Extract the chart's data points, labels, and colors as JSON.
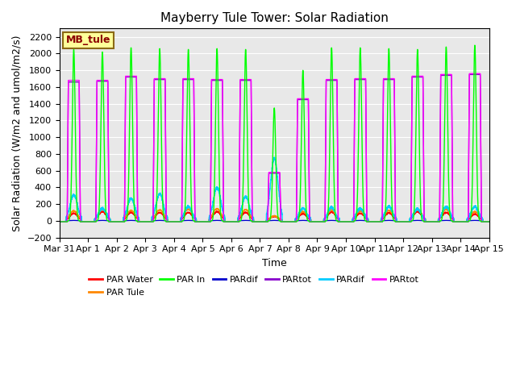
{
  "title": "Mayberry Tule Tower: Solar Radiation",
  "ylabel": "Solar Radiation (W/m2 and umol/m2/s)",
  "xlabel": "Time",
  "ylim": [
    -200,
    2300
  ],
  "yticks": [
    -200,
    0,
    200,
    400,
    600,
    800,
    1000,
    1200,
    1400,
    1600,
    1800,
    2000,
    2200
  ],
  "bg_color": "#e8e8e8",
  "legend_label": "MB_tule",
  "legend_box_color": "#ffff99",
  "legend_box_edge": "#8B6914",
  "series": [
    {
      "label": "PAR Water",
      "color": "#ff0000",
      "lw": 1.2
    },
    {
      "label": "PAR Tule",
      "color": "#ff8800",
      "lw": 1.2
    },
    {
      "label": "PAR In",
      "color": "#00ff00",
      "lw": 1.2
    },
    {
      "label": "PARdif",
      "color": "#0000cc",
      "lw": 1.2
    },
    {
      "label": "PARtot",
      "color": "#8800cc",
      "lw": 1.2
    },
    {
      "label": "PARdif",
      "color": "#00ccff",
      "lw": 1.2
    },
    {
      "label": "PARtot",
      "color": "#ff00ff",
      "lw": 1.5
    }
  ],
  "n_days": 15,
  "x_tick_labels": [
    "Mar 31",
    "Apr 1",
    "Apr 2",
    "Apr 3",
    "Apr 4",
    "Apr 5",
    "Apr 6",
    "Apr 7",
    "Apr 8",
    "Apr 9",
    "Apr 10",
    "Apr 11",
    "Apr 12",
    "Apr 13",
    "Apr 14",
    "Apr 15"
  ],
  "peaks_green": [
    2050,
    2020,
    2070,
    2060,
    2050,
    2060,
    2050,
    1350,
    1800,
    2070,
    2070,
    2060,
    2050,
    2080,
    2100
  ],
  "peaks_magenta": [
    1680,
    1680,
    1730,
    1700,
    1700,
    1690,
    1690,
    580,
    1460,
    1690,
    1700,
    1700,
    1730,
    1750,
    1760
  ],
  "peaks_cyan": [
    310,
    150,
    270,
    320,
    170,
    400,
    290,
    750,
    150,
    160,
    150,
    170,
    140,
    170,
    170
  ],
  "peaks_red": [
    90,
    110,
    100,
    100,
    100,
    110,
    100,
    55,
    85,
    105,
    90,
    95,
    110,
    100,
    80
  ],
  "peaks_orange": [
    120,
    135,
    125,
    130,
    140,
    145,
    135,
    60,
    110,
    130,
    120,
    125,
    140,
    135,
    110
  ],
  "peaks_purple": [
    1660,
    1670,
    1720,
    1690,
    1690,
    1680,
    1680,
    570,
    1450,
    1680,
    1690,
    1690,
    1720,
    1740,
    1750
  ],
  "peaks_blue": [
    5,
    5,
    5,
    5,
    5,
    5,
    5,
    5,
    5,
    5,
    5,
    5,
    5,
    5,
    5
  ],
  "night_value": -10
}
